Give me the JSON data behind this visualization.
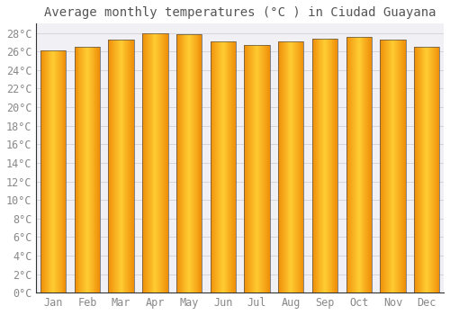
{
  "title": "Average monthly temperatures (°C ) in Ciudad Guayana",
  "months": [
    "Jan",
    "Feb",
    "Mar",
    "Apr",
    "May",
    "Jun",
    "Jul",
    "Aug",
    "Sep",
    "Oct",
    "Nov",
    "Dec"
  ],
  "values": [
    26.1,
    26.5,
    27.3,
    28.0,
    27.9,
    27.1,
    26.7,
    27.1,
    27.4,
    27.6,
    27.3,
    26.5
  ],
  "bar_color_center": "#FFCC33",
  "bar_color_edge": "#F0900A",
  "bar_border_color": "#555555",
  "background_color": "#FFFFFF",
  "plot_bg_color": "#F0F0F5",
  "grid_color": "#CCCCCC",
  "ylim": [
    0,
    29
  ],
  "ytick_step": 2,
  "title_fontsize": 10,
  "tick_fontsize": 8.5,
  "bar_width": 0.75,
  "title_color": "#555555",
  "tick_color": "#888888"
}
